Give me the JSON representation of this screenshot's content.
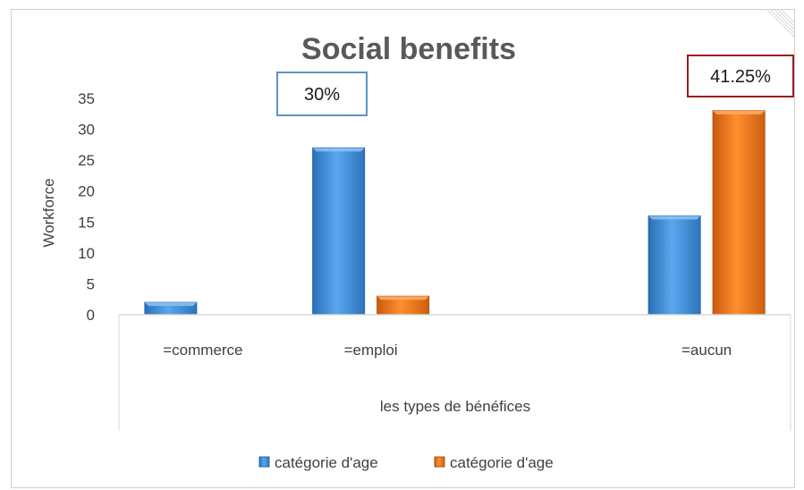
{
  "chart_data": {
    "type": "bar",
    "title": "Social benefits",
    "xlabel": "les types de bénéfices",
    "ylabel": "Workforce",
    "ylim": [
      0,
      35
    ],
    "yticks": [
      0,
      5,
      10,
      15,
      20,
      25,
      30,
      35
    ],
    "categories": [
      "=commerce",
      "=emploi",
      "",
      "=aucun"
    ],
    "series": [
      {
        "name": "catégorie d'age",
        "color": "#3f8fd6",
        "values": [
          2,
          27,
          0,
          16
        ]
      },
      {
        "name": "catégorie d'age",
        "color": "#e8731c",
        "values": [
          0,
          3,
          0,
          33
        ]
      }
    ],
    "annotations": [
      {
        "text": "30%",
        "border_color": "#5b93c9"
      },
      {
        "text": "41.25%",
        "border_color": "#a01c1c"
      }
    ],
    "legend_position": "bottom",
    "grid": false
  }
}
